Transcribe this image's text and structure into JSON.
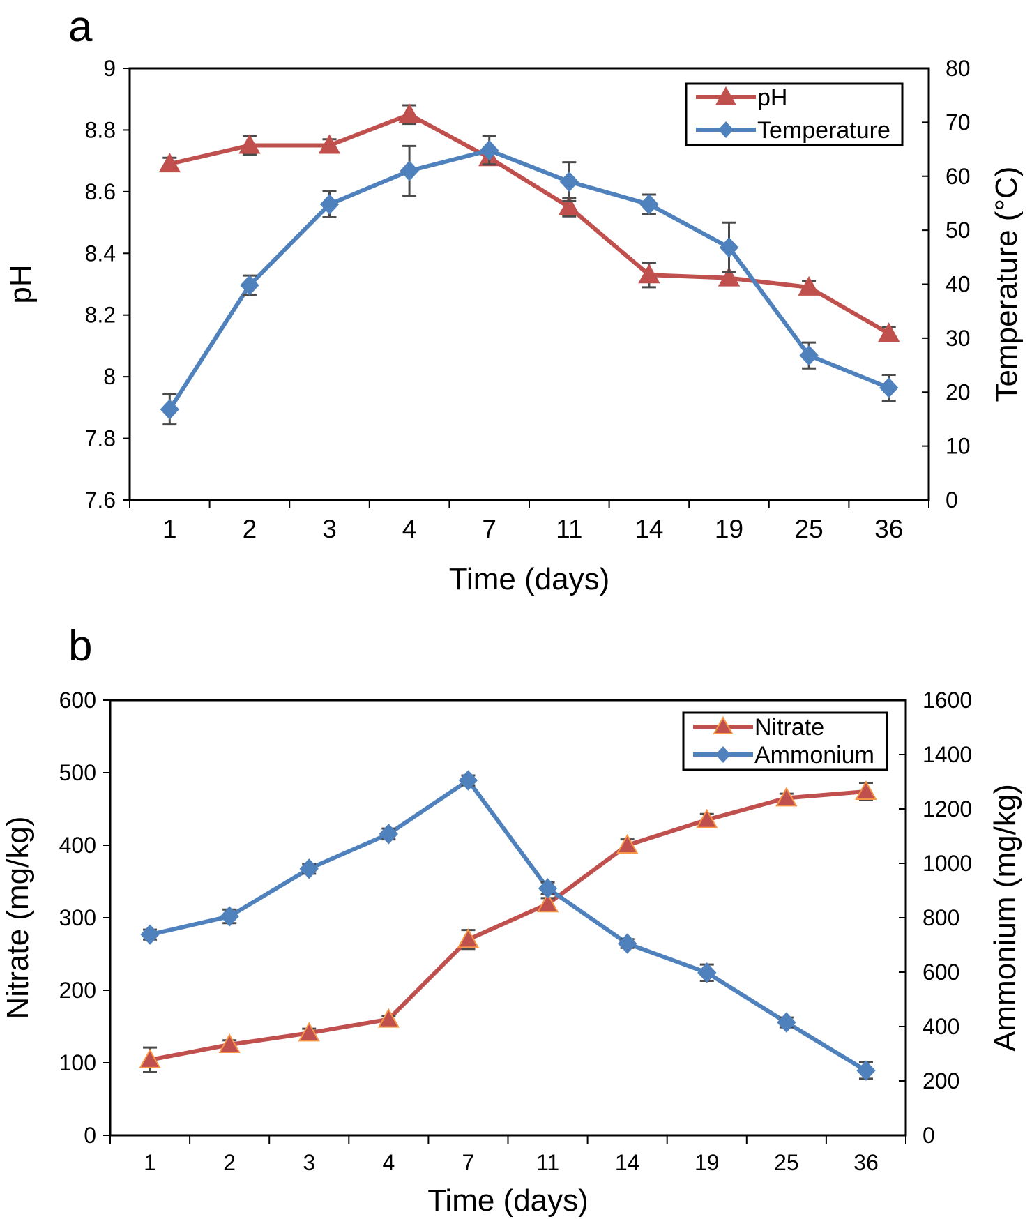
{
  "chart_data": [
    {
      "panel": "a",
      "type": "line",
      "title": "",
      "xlabel": "Time (days)",
      "ylabel": "pH",
      "y2label": "Temperature (°C)",
      "categories": [
        "1",
        "2",
        "3",
        "4",
        "7",
        "11",
        "14",
        "19",
        "25",
        "36"
      ],
      "ylim": [
        7.6,
        9
      ],
      "yticks": [
        "7.6",
        "7.8",
        "8",
        "8.2",
        "8.4",
        "8.6",
        "8.8",
        "9"
      ],
      "y2lim": [
        0,
        80
      ],
      "y2ticks": [
        "0",
        "10",
        "20",
        "30",
        "40",
        "50",
        "60",
        "70",
        "80"
      ],
      "grid": false,
      "legend_position": "top-right",
      "series": [
        {
          "name": "pH",
          "axis": "left",
          "marker": "triangle",
          "color": "#c0504d",
          "values": [
            8.69,
            8.75,
            8.75,
            8.85,
            8.71,
            8.55,
            8.33,
            8.32,
            8.29,
            8.14
          ],
          "errors": [
            0.02,
            0.03,
            0.02,
            0.03,
            0.02,
            0.03,
            0.04,
            0.02,
            0.02,
            0.02
          ]
        },
        {
          "name": "Temperature",
          "axis": "right",
          "marker": "diamond",
          "color": "#4f81bd",
          "values": [
            16.8,
            39.8,
            54.8,
            61.0,
            64.8,
            59.0,
            54.8,
            46.8,
            26.8,
            20.8
          ],
          "errors": [
            2.8,
            1.8,
            2.4,
            4.6,
            2.6,
            3.6,
            1.8,
            4.6,
            2.4,
            2.4
          ]
        }
      ]
    },
    {
      "panel": "b",
      "type": "line",
      "title": "",
      "xlabel": "Time (days)",
      "ylabel": "Nitrate (mg/kg)",
      "y2label": "Ammonium (mg/kg)",
      "categories": [
        "1",
        "2",
        "3",
        "4",
        "7",
        "11",
        "14",
        "19",
        "25",
        "36"
      ],
      "ylim": [
        0,
        600
      ],
      "yticks": [
        "0",
        "100",
        "200",
        "300",
        "400",
        "500",
        "600"
      ],
      "y2lim": [
        0,
        1600
      ],
      "y2ticks": [
        "0",
        "200",
        "400",
        "600",
        "800",
        "1000",
        "1200",
        "1400",
        "1600"
      ],
      "grid": false,
      "legend_position": "top-right",
      "series": [
        {
          "name": "Nitrate",
          "axis": "left",
          "marker": "triangle",
          "color": "#c0504d",
          "edge_color": "#f79646",
          "values": [
            104,
            125,
            141,
            160,
            270,
            319,
            400,
            435,
            465,
            474
          ],
          "errors": [
            17,
            6,
            6,
            4,
            13,
            8,
            8,
            8,
            6,
            12
          ]
        },
        {
          "name": "Ammonium",
          "axis": "right",
          "marker": "diamond",
          "color": "#4f81bd",
          "values": [
            738,
            805,
            980,
            1108,
            1305,
            908,
            705,
            598,
            415,
            238
          ],
          "errors": [
            18,
            25,
            18,
            20,
            18,
            22,
            16,
            30,
            18,
            30
          ]
        }
      ]
    }
  ],
  "panels": {
    "a": {
      "label": "a"
    },
    "b": {
      "label": "b"
    }
  }
}
